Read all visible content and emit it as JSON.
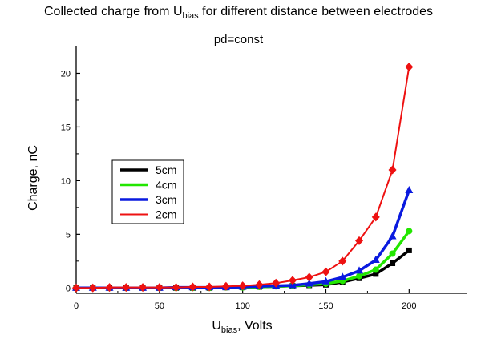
{
  "chart_data": {
    "type": "line",
    "title": {
      "prefix": "Collected charge from U",
      "sub": "bias",
      "suffix": " for different distance between electrodes"
    },
    "subtitle": "pd=const",
    "xlabel": {
      "prefix": "U",
      "sub": "bias",
      "suffix": ", Volts"
    },
    "ylabel": "Charge, nC",
    "xlim": [
      0,
      235
    ],
    "ylim": [
      -0.5,
      22.5
    ],
    "xticks": [
      0,
      50,
      100,
      150,
      200
    ],
    "yticks": [
      0,
      5,
      10,
      15,
      20
    ],
    "grid": false,
    "legend_position": "center-left",
    "x": [
      0,
      10,
      20,
      30,
      40,
      50,
      60,
      70,
      80,
      90,
      100,
      110,
      120,
      130,
      140,
      150,
      160,
      170,
      180,
      190,
      200
    ],
    "series": [
      {
        "name": "5cm",
        "color": "#000000",
        "marker": "square",
        "line_width": 3.5,
        "values": [
          0.0,
          0.0,
          0.0,
          0.0,
          0.0,
          0.0,
          0.0,
          0.0,
          0.0,
          0.05,
          0.05,
          0.1,
          0.15,
          0.2,
          0.25,
          0.3,
          0.55,
          0.9,
          1.3,
          2.3,
          3.5
        ]
      },
      {
        "name": "4cm",
        "color": "#22e600",
        "marker": "circle",
        "line_width": 3.5,
        "values": [
          0.0,
          0.0,
          0.0,
          0.0,
          0.0,
          0.0,
          0.0,
          0.0,
          0.0,
          0.05,
          0.05,
          0.1,
          0.15,
          0.2,
          0.3,
          0.4,
          0.65,
          1.1,
          1.7,
          3.2,
          5.3
        ]
      },
      {
        "name": "3cm",
        "color": "#0a1adf",
        "marker": "triangle",
        "line_width": 3.5,
        "values": [
          0.0,
          0.0,
          0.0,
          0.0,
          0.0,
          0.0,
          0.05,
          0.05,
          0.05,
          0.05,
          0.1,
          0.15,
          0.2,
          0.25,
          0.4,
          0.6,
          1.0,
          1.6,
          2.6,
          4.8,
          9.1
        ]
      },
      {
        "name": "2cm",
        "color": "#ee1111",
        "marker": "diamond",
        "line_width": 2,
        "values": [
          0.0,
          0.0,
          0.05,
          0.05,
          0.05,
          0.05,
          0.05,
          0.1,
          0.1,
          0.15,
          0.2,
          0.3,
          0.45,
          0.7,
          1.0,
          1.5,
          2.5,
          4.4,
          6.6,
          11.0,
          20.6
        ]
      }
    ]
  }
}
